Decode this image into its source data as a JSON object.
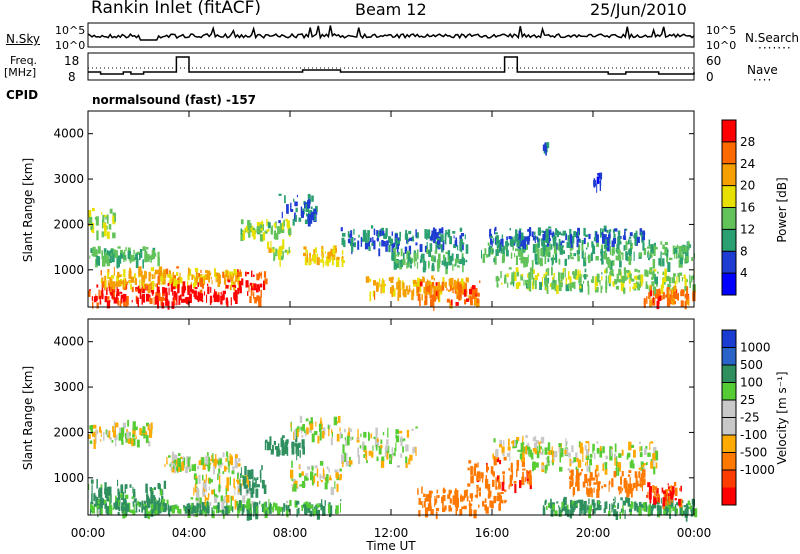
{
  "header": {
    "title": "Rankin Inlet (fitACF)",
    "beam": "Beam 12",
    "date": "25/Jun/2010"
  },
  "top_panels": {
    "nsky_label": "N.Sky",
    "nsky_ticks": [
      "10^5",
      "10^0"
    ],
    "nsearch_label": "N.Search",
    "freq_label_line1": "Freq.",
    "freq_label_line2": "[MHz]",
    "freq_ticks": [
      "18",
      "8"
    ],
    "nave_ticks": [
      "60",
      "0"
    ],
    "nave_label": "Nave",
    "cpid_label": "CPID",
    "cpid_value": "normalsound (fast) -157"
  },
  "x_axis": {
    "label": "Time UT",
    "ticks": [
      "00:00",
      "04:00",
      "08:00",
      "12:00",
      "16:00",
      "20:00",
      "00:00"
    ]
  },
  "power_scale": {
    "label": "Power [dB]",
    "ticks": [
      "28",
      "24",
      "20",
      "16",
      "12",
      "8",
      "4"
    ],
    "colors": [
      "#0000ff",
      "#1e3cd2",
      "#2aa070",
      "#63c35a",
      "#e8e000",
      "#f5a000",
      "#ff6a00",
      "#ff0000"
    ]
  },
  "velocity_scale": {
    "label": "Velocity [m s⁻¹]",
    "ticks": [
      "1000",
      "500",
      "100",
      "25",
      "-25",
      "-100",
      "-500",
      "-1000"
    ],
    "colors": [
      "#ff0000",
      "#ff3c00",
      "#ff7800",
      "#ffaa00",
      "#c8c8c8",
      "#c8c8c8",
      "#55cc33",
      "#2f8f5f",
      "#2a64c8",
      "#1a3cd2"
    ]
  },
  "chart_data": [
    {
      "type": "heatmap",
      "panel": "power",
      "ylabel": "Slant Range [km]",
      "yticks": [
        1000,
        2000,
        3000,
        4000
      ],
      "ylim": [
        180,
        4500
      ],
      "xlim": [
        0,
        24
      ],
      "value_range": [
        0,
        30
      ],
      "regions": [
        {
          "t": [
            0.0,
            1.0
          ],
          "r": [
            1700,
            2200
          ],
          "v": 16
        },
        {
          "t": [
            0.0,
            2.8
          ],
          "r": [
            1150,
            1350
          ],
          "v": 12
        },
        {
          "t": [
            0.0,
            3.0
          ],
          "r": [
            180,
            600
          ],
          "v": 27
        },
        {
          "t": [
            0.5,
            6.0
          ],
          "r": [
            600,
            900
          ],
          "v": 20
        },
        {
          "t": [
            3.0,
            6.0
          ],
          "r": [
            180,
            600
          ],
          "v": 29
        },
        {
          "t": [
            5.8,
            7.0
          ],
          "r": [
            200,
            900
          ],
          "v": 26
        },
        {
          "t": [
            6.0,
            8.0
          ],
          "r": [
            1700,
            2000
          ],
          "v": 14
        },
        {
          "t": [
            7.0,
            8.0
          ],
          "r": [
            1200,
            1500
          ],
          "v": 16
        },
        {
          "t": [
            7.5,
            9.0
          ],
          "r": [
            1900,
            2500
          ],
          "v": 8
        },
        {
          "t": [
            8.5,
            10.2
          ],
          "r": [
            1100,
            1400
          ],
          "v": 18
        },
        {
          "t": [
            10.0,
            15.0
          ],
          "r": [
            1400,
            1800
          ],
          "v": 8
        },
        {
          "t": [
            11.0,
            15.0
          ],
          "r": [
            400,
            700
          ],
          "v": 20
        },
        {
          "t": [
            12.0,
            15.0
          ],
          "r": [
            1000,
            1300
          ],
          "v": 12
        },
        {
          "t": [
            13.0,
            15.5
          ],
          "r": [
            180,
            600
          ],
          "v": 24
        },
        {
          "t": [
            15.5,
            24.0
          ],
          "r": [
            1100,
            1500
          ],
          "v": 12
        },
        {
          "t": [
            15.8,
            22.0
          ],
          "r": [
            1500,
            1800
          ],
          "v": 8
        },
        {
          "t": [
            16.0,
            24.0
          ],
          "r": [
            500,
            900
          ],
          "v": 14
        },
        {
          "t": [
            22.0,
            24.0
          ],
          "r": [
            180,
            500
          ],
          "v": 24
        },
        {
          "t": [
            20.0,
            20.3
          ],
          "r": [
            2800,
            3000
          ],
          "v": 6
        },
        {
          "t": [
            18.0,
            18.2
          ],
          "r": [
            3600,
            3800
          ],
          "v": 8
        }
      ]
    },
    {
      "type": "heatmap",
      "panel": "velocity",
      "ylabel": "Slant Range [km]",
      "yticks": [
        1000,
        2000,
        3000,
        4000
      ],
      "ylim": [
        180,
        4500
      ],
      "xlim": [
        0,
        24
      ],
      "value_range": [
        -1000,
        1000
      ],
      "regions": [
        {
          "t": [
            0.0,
            2.5
          ],
          "r": [
            1700,
            2100
          ],
          "v": 0
        },
        {
          "t": [
            0.0,
            3.0
          ],
          "r": [
            300,
            800
          ],
          "v": 150
        },
        {
          "t": [
            0.0,
            10.0
          ],
          "r": [
            180,
            350
          ],
          "v": 120
        },
        {
          "t": [
            3.0,
            6.0
          ],
          "r": [
            1100,
            1400
          ],
          "v": 0
        },
        {
          "t": [
            4.0,
            6.5
          ],
          "r": [
            400,
            1000
          ],
          "v": 0
        },
        {
          "t": [
            6.0,
            7.0
          ],
          "r": [
            600,
            1100
          ],
          "v": 400
        },
        {
          "t": [
            7.0,
            8.5
          ],
          "r": [
            1500,
            1800
          ],
          "v": 300
        },
        {
          "t": [
            8.0,
            10.0
          ],
          "r": [
            700,
            1200
          ],
          "v": 0
        },
        {
          "t": [
            8.0,
            10.0
          ],
          "r": [
            1800,
            2200
          ],
          "v": 0
        },
        {
          "t": [
            10.0,
            13.0
          ],
          "r": [
            1200,
            2000
          ],
          "v": 0
        },
        {
          "t": [
            13.0,
            16.5
          ],
          "r": [
            180,
            700
          ],
          "v": -250
        },
        {
          "t": [
            15.0,
            17.5
          ],
          "r": [
            700,
            1300
          ],
          "v": -450
        },
        {
          "t": [
            16.0,
            18.0
          ],
          "r": [
            1400,
            1800
          ],
          "v": 0
        },
        {
          "t": [
            17.5,
            22.5
          ],
          "r": [
            1100,
            1700
          ],
          "v": 0
        },
        {
          "t": [
            18.0,
            24.0
          ],
          "r": [
            180,
            400
          ],
          "v": 150
        },
        {
          "t": [
            19.0,
            22.0
          ],
          "r": [
            600,
            1100
          ],
          "v": -350
        },
        {
          "t": [
            22.0,
            23.5
          ],
          "r": [
            400,
            800
          ],
          "v": -500
        }
      ]
    }
  ]
}
